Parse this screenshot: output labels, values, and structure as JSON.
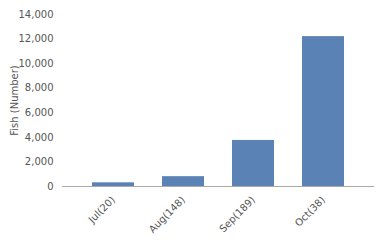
{
  "chart_data": {
    "type": "bar",
    "categories": [
      "Jul(20)",
      "Aug(148)",
      "Sep(189)",
      "Oct(38)"
    ],
    "values": [
      300,
      800,
      3750,
      12200
    ],
    "color": "#5b82b5",
    "ylabel": "Fish (Number)",
    "ylim": [
      0,
      14000
    ],
    "yticks": [
      0,
      {
        "value": 2000,
        "label": "2,000"
      },
      {
        "value": 4000,
        "label": "4,000"
      },
      {
        "value": 6000,
        "label": "6,000"
      },
      {
        "value": 8000,
        "label": "8,000"
      },
      {
        "value": 10000,
        "label": "10,000"
      },
      {
        "value": 12000,
        "label": "12,000"
      },
      {
        "value": 14000,
        "label": "14,000"
      }
    ],
    "grid": false
  }
}
